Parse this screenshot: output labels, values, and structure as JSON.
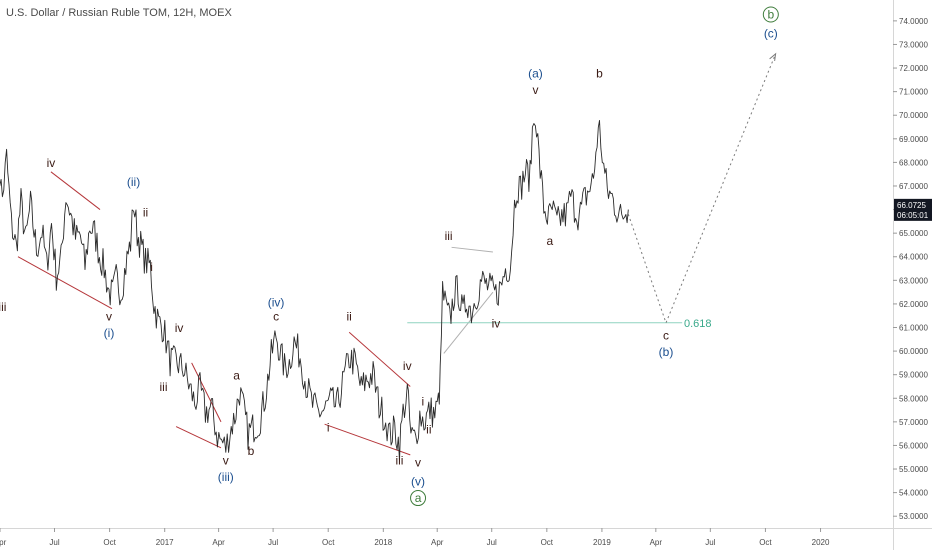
{
  "header": {
    "title": "U.S. Dollar / Russian Ruble TOM, 12H, MOEX"
  },
  "colors": {
    "candle": "#2a2a2a",
    "trend": "#b5363a",
    "fib": "#8fd3c0",
    "fib_text": "#3aa98b",
    "wave_blue": "#1c4f8f",
    "wave_dark": "#3a1a14",
    "wave_green": "#3f7d3c",
    "projection": "#7a7a7a",
    "price_tag_bg": "#131722",
    "price_tag_text": "#ffffff"
  },
  "chart_data": {
    "type": "line",
    "title": "U.S. Dollar / Russian Ruble TOM, 12H, MOEX",
    "ylim": [
      52.5,
      74.8
    ],
    "xlim": [
      "2016-04-01",
      "2020-05-01"
    ],
    "y_ticks": [
      "53.0000",
      "54.0000",
      "55.0000",
      "56.0000",
      "57.0000",
      "58.0000",
      "59.0000",
      "60.0000",
      "61.0000",
      "62.0000",
      "63.0000",
      "64.0000",
      "65.0000",
      "66.0000",
      "67.0000",
      "68.0000",
      "69.0000",
      "70.0000",
      "71.0000",
      "72.0000",
      "73.0000",
      "74.0000"
    ],
    "x_ticks": [
      {
        "label": "Apr",
        "date": "2016-04-01"
      },
      {
        "label": "Jul",
        "date": "2016-07-01"
      },
      {
        "label": "Oct",
        "date": "2016-10-01"
      },
      {
        "label": "2017",
        "date": "2017-01-01"
      },
      {
        "label": "Apr",
        "date": "2017-04-01"
      },
      {
        "label": "Jul",
        "date": "2017-07-01"
      },
      {
        "label": "Oct",
        "date": "2017-10-01"
      },
      {
        "label": "2018",
        "date": "2018-01-01"
      },
      {
        "label": "Apr",
        "date": "2018-04-01"
      },
      {
        "label": "Jul",
        "date": "2018-07-01"
      },
      {
        "label": "Oct",
        "date": "2018-10-01"
      },
      {
        "label": "2019",
        "date": "2019-01-01"
      },
      {
        "label": "Apr",
        "date": "2019-04-01"
      },
      {
        "label": "Jul",
        "date": "2019-07-01"
      },
      {
        "label": "Oct",
        "date": "2019-10-01"
      },
      {
        "label": "2020",
        "date": "2020-01-01"
      }
    ],
    "series": [
      {
        "points": [
          [
            "2016-03-25",
            68.8
          ],
          [
            "2016-04-05",
            66.5
          ],
          [
            "2016-04-12",
            68.2
          ],
          [
            "2016-04-20",
            65.4
          ],
          [
            "2016-04-28",
            64.4
          ],
          [
            "2016-05-06",
            66.3
          ],
          [
            "2016-05-14",
            64.7
          ],
          [
            "2016-05-22",
            66.2
          ],
          [
            "2016-06-01",
            64.3
          ],
          [
            "2016-06-10",
            65.1
          ],
          [
            "2016-06-18",
            63.6
          ],
          [
            "2016-06-26",
            65.4
          ],
          [
            "2016-07-04",
            63.2
          ],
          [
            "2016-07-12",
            63.9
          ],
          [
            "2016-07-20",
            66.6
          ],
          [
            "2016-07-28",
            65.8
          ],
          [
            "2016-08-05",
            64.8
          ],
          [
            "2016-08-13",
            64.9
          ],
          [
            "2016-08-21",
            63.6
          ],
          [
            "2016-08-29",
            65.3
          ],
          [
            "2016-09-06",
            65.0
          ],
          [
            "2016-09-14",
            64.1
          ],
          [
            "2016-09-22",
            63.5
          ],
          [
            "2016-09-30",
            62.5
          ],
          [
            "2016-10-06",
            62.4
          ],
          [
            "2016-10-12",
            63.1
          ],
          [
            "2016-10-20",
            62.5
          ],
          [
            "2016-10-30",
            63.9
          ],
          [
            "2016-11-05",
            64.6
          ],
          [
            "2016-11-10",
            66.3
          ],
          [
            "2016-11-16",
            65.0
          ],
          [
            "2016-11-22",
            64.5
          ],
          [
            "2016-11-30",
            63.8
          ],
          [
            "2016-12-08",
            63.6
          ],
          [
            "2016-12-14",
            62.0
          ],
          [
            "2016-12-22",
            61.2
          ],
          [
            "2016-12-30",
            61.0
          ],
          [
            "2017-01-10",
            59.6
          ],
          [
            "2017-01-20",
            59.5
          ],
          [
            "2017-02-01",
            59.3
          ],
          [
            "2017-02-10",
            58.6
          ],
          [
            "2017-02-20",
            57.8
          ],
          [
            "2017-03-01",
            58.4
          ],
          [
            "2017-03-10",
            57.4
          ],
          [
            "2017-03-20",
            57.6
          ],
          [
            "2017-03-30",
            56.4
          ],
          [
            "2017-04-08",
            56.1
          ],
          [
            "2017-04-13",
            55.9
          ],
          [
            "2017-04-20",
            56.6
          ],
          [
            "2017-04-28",
            57.2
          ],
          [
            "2017-05-06",
            58.3
          ],
          [
            "2017-05-12",
            57.6
          ],
          [
            "2017-05-20",
            56.5
          ],
          [
            "2017-05-30",
            56.8
          ],
          [
            "2017-06-08",
            57.0
          ],
          [
            "2017-06-18",
            58.1
          ],
          [
            "2017-06-28",
            59.8
          ],
          [
            "2017-07-06",
            60.7
          ],
          [
            "2017-07-12",
            60.0
          ],
          [
            "2017-07-20",
            59.3
          ],
          [
            "2017-07-28",
            59.5
          ],
          [
            "2017-08-05",
            60.4
          ],
          [
            "2017-08-15",
            59.8
          ],
          [
            "2017-08-25",
            58.6
          ],
          [
            "2017-09-05",
            57.7
          ],
          [
            "2017-09-15",
            57.4
          ],
          [
            "2017-09-25",
            57.5
          ],
          [
            "2017-10-05",
            57.9
          ],
          [
            "2017-10-15",
            57.6
          ],
          [
            "2017-10-25",
            58.6
          ],
          [
            "2017-11-05",
            59.7
          ],
          [
            "2017-11-15",
            59.5
          ],
          [
            "2017-11-25",
            58.4
          ],
          [
            "2017-12-05",
            58.8
          ],
          [
            "2017-12-15",
            59.0
          ],
          [
            "2017-12-25",
            57.7
          ],
          [
            "2018-01-05",
            57.1
          ],
          [
            "2018-01-12",
            56.4
          ],
          [
            "2018-01-20",
            56.7
          ],
          [
            "2018-01-28",
            56.0
          ],
          [
            "2018-02-03",
            57.4
          ],
          [
            "2018-02-10",
            58.3
          ],
          [
            "2018-02-16",
            56.4
          ],
          [
            "2018-02-24",
            56.3
          ],
          [
            "2018-03-03",
            57.3
          ],
          [
            "2018-03-10",
            57.0
          ],
          [
            "2018-03-20",
            57.5
          ],
          [
            "2018-03-28",
            57.3
          ],
          [
            "2018-04-03",
            57.8
          ],
          [
            "2018-04-06",
            58.8
          ],
          [
            "2018-04-10",
            62.5
          ],
          [
            "2018-04-16",
            61.8
          ],
          [
            "2018-04-22",
            61.3
          ],
          [
            "2018-04-30",
            62.5
          ],
          [
            "2018-05-06",
            62.6
          ],
          [
            "2018-05-14",
            61.5
          ],
          [
            "2018-05-20",
            62.2
          ],
          [
            "2018-05-28",
            61.7
          ],
          [
            "2018-06-06",
            62.4
          ],
          [
            "2018-06-14",
            63.0
          ],
          [
            "2018-06-22",
            62.8
          ],
          [
            "2018-06-30",
            62.6
          ],
          [
            "2018-07-08",
            62.4
          ],
          [
            "2018-07-16",
            62.7
          ],
          [
            "2018-07-24",
            63.5
          ],
          [
            "2018-08-01",
            63.6
          ],
          [
            "2018-08-08",
            66.2
          ],
          [
            "2018-08-12",
            67.0
          ],
          [
            "2018-08-18",
            66.9
          ],
          [
            "2018-08-26",
            67.6
          ],
          [
            "2018-09-03",
            67.4
          ],
          [
            "2018-09-07",
            69.3
          ],
          [
            "2018-09-12",
            70.2
          ],
          [
            "2018-09-18",
            68.2
          ],
          [
            "2018-09-26",
            66.1
          ],
          [
            "2018-10-04",
            65.6
          ],
          [
            "2018-10-10",
            66.0
          ],
          [
            "2018-10-18",
            65.4
          ],
          [
            "2018-10-26",
            65.7
          ],
          [
            "2018-11-03",
            65.8
          ],
          [
            "2018-11-10",
            66.6
          ],
          [
            "2018-11-16",
            66.1
          ],
          [
            "2018-11-24",
            65.7
          ],
          [
            "2018-12-02",
            66.4
          ],
          [
            "2018-12-10",
            66.8
          ],
          [
            "2018-12-18",
            67.3
          ],
          [
            "2018-12-24",
            69.0
          ],
          [
            "2018-12-28",
            69.4
          ],
          [
            "2019-01-04",
            67.8
          ],
          [
            "2019-01-10",
            66.8
          ],
          [
            "2019-01-18",
            66.5
          ],
          [
            "2019-01-26",
            66.0
          ],
          [
            "2019-02-03",
            65.6
          ],
          [
            "2019-02-08",
            65.9
          ],
          [
            "2019-02-14",
            66.0
          ]
        ]
      }
    ],
    "last_price": {
      "value": 66.0725,
      "label": "66.0725",
      "countdown": "06:05:01"
    },
    "fib_level": {
      "value": 61.2,
      "label": "0.618"
    }
  },
  "wave_labels": [
    {
      "text": "iii",
      "date": "2016-04-05",
      "price": 61.7,
      "color": "dark"
    },
    {
      "text": "iv",
      "date": "2016-06-25",
      "price": 67.8,
      "color": "dark"
    },
    {
      "text": "v",
      "date": "2016-09-30",
      "price": 61.3,
      "color": "dark"
    },
    {
      "text": "(i)",
      "date": "2016-09-30",
      "price": 60.6,
      "color": "blue"
    },
    {
      "text": "(ii)",
      "date": "2016-11-10",
      "price": 67.0,
      "color": "blue"
    },
    {
      "text": "ii",
      "date": "2016-11-30",
      "price": 65.7,
      "color": "dark"
    },
    {
      "text": "i",
      "date": "2016-12-10",
      "price": 63.4,
      "color": "dark"
    },
    {
      "text": "iv",
      "date": "2017-01-25",
      "price": 60.8,
      "color": "dark"
    },
    {
      "text": "iii",
      "date": "2016-12-30",
      "price": 58.3,
      "color": "dark"
    },
    {
      "text": "a",
      "date": "2017-05-01",
      "price": 58.8,
      "color": "dark"
    },
    {
      "text": "v",
      "date": "2017-04-13",
      "price": 55.2,
      "color": "dark"
    },
    {
      "text": "(iii)",
      "date": "2017-04-13",
      "price": 54.5,
      "color": "blue"
    },
    {
      "text": "b",
      "date": "2017-05-25",
      "price": 55.6,
      "color": "dark"
    },
    {
      "text": "(iv)",
      "date": "2017-07-06",
      "price": 61.9,
      "color": "blue"
    },
    {
      "text": "c",
      "date": "2017-07-06",
      "price": 61.3,
      "color": "dark"
    },
    {
      "text": "ii",
      "date": "2017-11-05",
      "price": 61.3,
      "color": "dark"
    },
    {
      "text": "i",
      "date": "2017-10-01",
      "price": 56.6,
      "color": "dark"
    },
    {
      "text": "iv",
      "date": "2018-02-10",
      "price": 59.2,
      "color": "dark"
    },
    {
      "text": "i",
      "date": "2018-03-08",
      "price": 57.7,
      "color": "dark"
    },
    {
      "text": "iii",
      "date": "2018-01-28",
      "price": 55.2,
      "color": "dark"
    },
    {
      "text": "ii",
      "date": "2018-03-18",
      "price": 56.5,
      "color": "dark"
    },
    {
      "text": "v",
      "date": "2018-02-28",
      "price": 55.1,
      "color": "dark"
    },
    {
      "text": "(v)",
      "date": "2018-02-28",
      "price": 54.3,
      "color": "blue"
    },
    {
      "text": "iii",
      "date": "2018-04-20",
      "price": 64.7,
      "color": "dark"
    },
    {
      "text": "iv",
      "date": "2018-07-08",
      "price": 61.0,
      "color": "dark"
    },
    {
      "text": "(a)",
      "date": "2018-09-12",
      "price": 71.6,
      "color": "blue"
    },
    {
      "text": "v",
      "date": "2018-09-12",
      "price": 70.9,
      "color": "dark"
    },
    {
      "text": "a",
      "date": "2018-10-06",
      "price": 64.5,
      "color": "dark"
    },
    {
      "text": "b",
      "date": "2018-12-28",
      "price": 71.6,
      "color": "dark"
    },
    {
      "text": "c",
      "date": "2019-04-18",
      "price": 60.5,
      "color": "dark"
    },
    {
      "text": "(b)",
      "date": "2019-04-18",
      "price": 59.8,
      "color": "blue"
    },
    {
      "text": "(c)",
      "date": "2019-10-10",
      "price": 73.3,
      "color": "blue"
    }
  ],
  "circled_labels": [
    {
      "text": "a",
      "date": "2018-02-28",
      "price": 53.6
    },
    {
      "text": "b",
      "date": "2019-10-10",
      "price": 74.1
    }
  ]
}
